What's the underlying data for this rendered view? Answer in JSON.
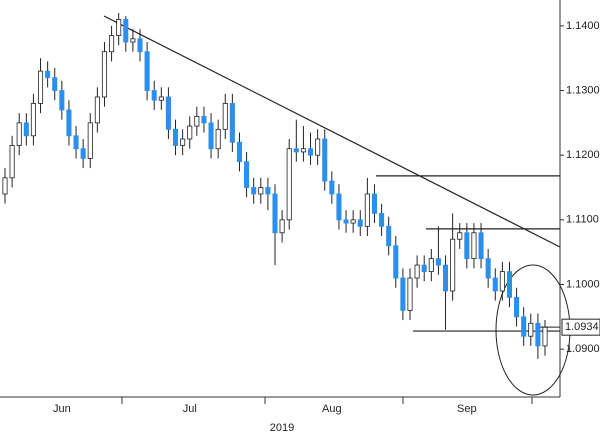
{
  "chart_data": {
    "type": "candlestick",
    "x_label": "2019",
    "categories": [
      null,
      null,
      null,
      null,
      null,
      null,
      null,
      null,
      "Jun",
      null,
      null,
      null,
      null,
      null,
      null,
      null,
      null,
      null,
      null,
      null,
      null,
      null,
      null,
      null,
      null,
      null,
      "Jul",
      null,
      null,
      null,
      null,
      null,
      null,
      null,
      null,
      null,
      null,
      null,
      null,
      null,
      null,
      null,
      null,
      null,
      null,
      null,
      "Aug",
      null,
      null,
      null,
      null,
      null,
      null,
      null,
      null,
      null,
      null,
      null,
      null,
      null,
      null,
      null,
      null,
      null,
      null,
      "Sep",
      null,
      null,
      null,
      null,
      null,
      null,
      null,
      null,
      null,
      null,
      null
    ],
    "open": [
      1.114,
      1.1165,
      1.1215,
      1.125,
      1.123,
      1.128,
      1.133,
      1.132,
      1.13,
      1.127,
      1.123,
      1.121,
      1.1195,
      1.125,
      1.129,
      1.136,
      1.1385,
      1.141,
      1.1375,
      1.138,
      1.136,
      1.13,
      1.1285,
      1.129,
      1.124,
      1.1215,
      1.1225,
      1.1245,
      1.126,
      1.125,
      1.121,
      1.124,
      1.128,
      1.122,
      1.119,
      1.115,
      1.114,
      1.115,
      1.114,
      1.108,
      1.11,
      1.121,
      1.1205,
      1.121,
      1.12,
      1.1225,
      1.116,
      1.114,
      1.11,
      1.1095,
      1.11,
      1.109,
      1.114,
      1.111,
      1.109,
      1.106,
      1.101,
      1.096,
      1.101,
      1.103,
      1.102,
      1.104,
      1.103,
      1.099,
      1.107,
      1.108,
      1.104,
      1.108,
      1.104,
      1.101,
      1.099,
      1.102,
      1.098,
      1.095,
      1.092,
      1.094,
      1.0905
    ],
    "high": [
      1.118,
      1.123,
      1.1265,
      1.1265,
      1.1295,
      1.135,
      1.1345,
      1.1335,
      1.1315,
      1.1285,
      1.1245,
      1.1225,
      1.1265,
      1.1305,
      1.1375,
      1.14,
      1.142,
      1.1415,
      1.1395,
      1.1395,
      1.1375,
      1.1315,
      1.1305,
      1.1305,
      1.1255,
      1.124,
      1.126,
      1.1275,
      1.1275,
      1.1265,
      1.1255,
      1.1295,
      1.1295,
      1.1235,
      1.1205,
      1.1165,
      1.1165,
      1.1165,
      1.1155,
      1.1115,
      1.1225,
      1.1255,
      1.1245,
      1.1235,
      1.124,
      1.124,
      1.1175,
      1.1155,
      1.1115,
      1.1115,
      1.1115,
      1.1165,
      1.1155,
      1.1125,
      1.1105,
      1.1075,
      1.1025,
      1.1025,
      1.1045,
      1.1045,
      1.1055,
      1.109,
      1.1045,
      1.111,
      1.1095,
      1.1095,
      1.1095,
      1.1095,
      1.1055,
      1.1025,
      1.1035,
      1.1035,
      1.0995,
      1.0965,
      1.0955,
      1.0955,
      1.0945
    ],
    "low": [
      1.1125,
      1.115,
      1.12,
      1.1215,
      1.1215,
      1.1265,
      1.1305,
      1.1285,
      1.1255,
      1.1215,
      1.1195,
      1.118,
      1.118,
      1.1235,
      1.1275,
      1.1345,
      1.137,
      1.136,
      1.136,
      1.1345,
      1.1285,
      1.127,
      1.127,
      1.1225,
      1.12,
      1.12,
      1.121,
      1.123,
      1.1235,
      1.1195,
      1.1195,
      1.1225,
      1.1205,
      1.1175,
      1.1135,
      1.1125,
      1.1125,
      1.1115,
      1.103,
      1.1065,
      1.1085,
      1.119,
      1.119,
      1.1185,
      1.1185,
      1.1145,
      1.1125,
      1.1085,
      1.108,
      1.108,
      1.1075,
      1.1075,
      1.1095,
      1.1075,
      1.1045,
      1.0995,
      1.0945,
      1.0945,
      1.0995,
      1.1005,
      1.1005,
      1.1015,
      1.093,
      1.0975,
      1.1055,
      1.1025,
      1.1025,
      1.1025,
      1.0995,
      1.0975,
      1.0975,
      1.0965,
      1.0935,
      1.0905,
      1.0905,
      1.0885,
      1.089
    ],
    "close": [
      1.1165,
      1.1215,
      1.125,
      1.123,
      1.128,
      1.133,
      1.132,
      1.13,
      1.127,
      1.123,
      1.121,
      1.1195,
      1.125,
      1.129,
      1.136,
      1.1385,
      1.141,
      1.1375,
      1.138,
      1.136,
      1.13,
      1.1285,
      1.129,
      1.124,
      1.1215,
      1.1225,
      1.1245,
      1.126,
      1.125,
      1.121,
      1.124,
      1.128,
      1.122,
      1.119,
      1.115,
      1.114,
      1.115,
      1.114,
      1.108,
      1.11,
      1.121,
      1.1205,
      1.121,
      1.12,
      1.1225,
      1.116,
      1.114,
      1.11,
      1.1095,
      1.11,
      1.109,
      1.114,
      1.111,
      1.109,
      1.106,
      1.101,
      1.096,
      1.101,
      1.103,
      1.102,
      1.104,
      1.103,
      1.099,
      1.107,
      1.108,
      1.104,
      1.108,
      1.104,
      1.101,
      1.099,
      1.102,
      1.098,
      1.095,
      1.092,
      1.094,
      1.0905,
      1.0934
    ],
    "up_color": "#ffffff",
    "down_color": "#2a8fef",
    "hlines": [
      1.1168,
      1.1086,
      1.0928
    ],
    "last_price": {
      "value": 1.0934,
      "label": "1.0934"
    },
    "ylim": [
      1.0826,
      1.144
    ],
    "yticks": [
      {
        "value": 1.09,
        "label": "1.0900"
      },
      {
        "value": 1.1,
        "label": "1.1000"
      },
      {
        "value": 1.11,
        "label": "1.1100"
      },
      {
        "value": 1.12,
        "label": "1.1200"
      },
      {
        "value": 1.13,
        "label": "1.1300"
      },
      {
        "value": 1.14,
        "label": "1.1400"
      }
    ]
  }
}
